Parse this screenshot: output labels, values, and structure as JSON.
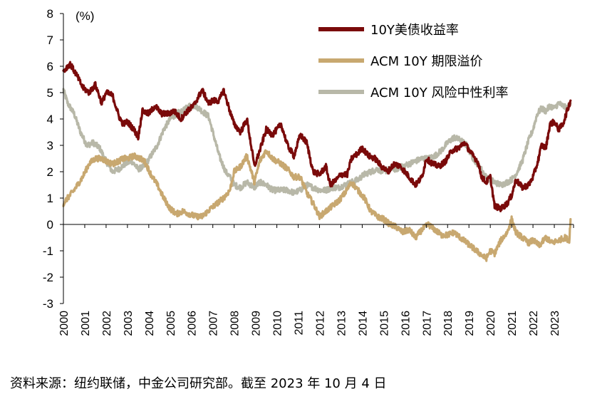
{
  "chart_data": {
    "type": "line",
    "unit": "(%)",
    "ylim": [
      -3,
      8
    ],
    "yticks": [
      -3,
      -2,
      -1,
      0,
      1,
      2,
      3,
      4,
      5,
      6,
      7,
      8
    ],
    "xlim": [
      2000,
      2023.9
    ],
    "xticks": [
      "2000",
      "2001",
      "2002",
      "2003",
      "2004",
      "2005",
      "2006",
      "2007",
      "2008",
      "2009",
      "2010",
      "2011",
      "2012",
      "2013",
      "2014",
      "2015",
      "2016",
      "2017",
      "2018",
      "2019",
      "2020",
      "2021",
      "2022",
      "2023"
    ],
    "grid": false,
    "legend_position": "top-right",
    "series": [
      {
        "name": "10Y美债收益率",
        "color": "#7a0a0a",
        "x": [
          2000.0,
          2000.3,
          2000.6,
          2000.9,
          2001.2,
          2001.5,
          2001.8,
          2002.0,
          2002.3,
          2002.6,
          2002.8,
          2003.0,
          2003.3,
          2003.5,
          2003.7,
          2004.0,
          2004.3,
          2004.6,
          2004.9,
          2005.2,
          2005.5,
          2005.8,
          2006.1,
          2006.5,
          2006.8,
          2007.0,
          2007.3,
          2007.5,
          2007.8,
          2008.0,
          2008.3,
          2008.6,
          2008.95,
          2009.2,
          2009.5,
          2009.8,
          2010.2,
          2010.5,
          2010.8,
          2011.1,
          2011.4,
          2011.7,
          2012.0,
          2012.3,
          2012.5,
          2012.8,
          2013.0,
          2013.3,
          2013.5,
          2013.8,
          2014.0,
          2014.3,
          2014.6,
          2014.9,
          2015.2,
          2015.5,
          2015.8,
          2016.1,
          2016.5,
          2016.8,
          2017.0,
          2017.3,
          2017.6,
          2017.9,
          2018.2,
          2018.5,
          2018.8,
          2019.1,
          2019.4,
          2019.6,
          2019.8,
          2020.0,
          2020.2,
          2020.5,
          2020.8,
          2021.0,
          2021.2,
          2021.5,
          2021.8,
          2022.0,
          2022.2,
          2022.4,
          2022.6,
          2022.8,
          2023.0,
          2023.2,
          2023.4,
          2023.6,
          2023.76
        ],
        "values": [
          5.8,
          6.1,
          5.7,
          5.2,
          5.0,
          5.3,
          4.6,
          5.0,
          4.9,
          4.1,
          3.8,
          3.9,
          3.6,
          3.3,
          4.3,
          4.2,
          4.5,
          4.2,
          4.2,
          4.3,
          4.0,
          4.3,
          4.5,
          5.1,
          4.6,
          4.7,
          4.7,
          5.1,
          4.3,
          3.8,
          3.5,
          4.0,
          2.2,
          2.8,
          3.6,
          3.4,
          3.8,
          3.0,
          2.6,
          3.4,
          3.1,
          2.0,
          1.9,
          2.2,
          1.5,
          1.7,
          1.9,
          1.9,
          2.5,
          2.7,
          2.9,
          2.6,
          2.5,
          2.2,
          2.0,
          2.3,
          2.2,
          1.9,
          1.5,
          1.8,
          2.5,
          2.3,
          2.2,
          2.4,
          2.8,
          2.9,
          3.1,
          2.7,
          2.4,
          1.8,
          1.6,
          1.8,
          0.7,
          0.6,
          0.8,
          1.1,
          1.7,
          1.4,
          1.5,
          1.8,
          2.3,
          3.0,
          2.9,
          3.8,
          3.9,
          3.6,
          3.8,
          4.3,
          4.7
        ]
      },
      {
        "name": "ACM 10Y 期限溢价",
        "color": "#c8a870",
        "x": [
          2000.0,
          2000.2,
          2000.5,
          2000.9,
          2001.2,
          2001.5,
          2001.8,
          2002.0,
          2002.3,
          2002.6,
          2002.8,
          2003.0,
          2003.3,
          2003.6,
          2003.8,
          2004.1,
          2004.4,
          2004.7,
          2005.0,
          2005.3,
          2005.6,
          2005.9,
          2006.2,
          2006.5,
          2006.9,
          2007.2,
          2007.5,
          2007.8,
          2008.0,
          2008.3,
          2008.6,
          2008.95,
          2009.2,
          2009.5,
          2009.8,
          2010.2,
          2010.5,
          2010.8,
          2011.1,
          2011.4,
          2011.7,
          2012.0,
          2012.3,
          2012.6,
          2012.9,
          2013.2,
          2013.5,
          2013.8,
          2014.1,
          2014.4,
          2014.7,
          2015.0,
          2015.3,
          2015.6,
          2015.9,
          2016.2,
          2016.5,
          2016.8,
          2017.1,
          2017.4,
          2017.7,
          2018.0,
          2018.3,
          2018.6,
          2018.9,
          2019.2,
          2019.5,
          2019.8,
          2020.0,
          2020.2,
          2020.5,
          2020.8,
          2021.0,
          2021.2,
          2021.5,
          2021.8,
          2022.0,
          2022.3,
          2022.6,
          2022.9,
          2023.2,
          2023.5,
          2023.7,
          2023.76
        ],
        "values": [
          0.8,
          1.0,
          1.3,
          1.8,
          2.3,
          2.5,
          2.5,
          2.4,
          2.3,
          2.4,
          2.5,
          2.5,
          2.6,
          2.5,
          2.4,
          1.9,
          1.5,
          1.0,
          0.6,
          0.4,
          0.5,
          0.4,
          0.3,
          0.3,
          0.6,
          0.8,
          1.0,
          1.3,
          2.0,
          2.2,
          2.6,
          1.6,
          2.4,
          2.8,
          2.5,
          2.3,
          2.1,
          1.8,
          1.8,
          1.2,
          0.8,
          0.3,
          0.5,
          0.7,
          0.9,
          1.2,
          1.6,
          1.3,
          1.0,
          0.5,
          0.3,
          0.2,
          0.0,
          -0.1,
          -0.3,
          -0.2,
          -0.5,
          -0.2,
          0.0,
          -0.2,
          -0.4,
          -0.4,
          -0.3,
          -0.5,
          -0.7,
          -0.9,
          -1.1,
          -1.3,
          -1.0,
          -1.1,
          -0.6,
          -0.3,
          0.2,
          -0.3,
          -0.5,
          -0.7,
          -0.6,
          -0.8,
          -0.5,
          -0.7,
          -0.6,
          -0.5,
          -0.6,
          0.2
        ]
      },
      {
        "name": "ACM 10Y 风险中性利率",
        "color": "#b8b8a8",
        "x": [
          2000.0,
          2000.2,
          2000.5,
          2000.8,
          2001.1,
          2001.4,
          2001.7,
          2002.0,
          2002.3,
          2002.6,
          2002.9,
          2003.2,
          2003.5,
          2003.8,
          2004.1,
          2004.4,
          2004.7,
          2005.0,
          2005.3,
          2005.6,
          2005.9,
          2006.2,
          2006.5,
          2006.8,
          2007.0,
          2007.3,
          2007.6,
          2007.8,
          2008.0,
          2008.3,
          2008.6,
          2008.95,
          2009.2,
          2009.5,
          2009.8,
          2010.2,
          2010.5,
          2010.8,
          2011.1,
          2011.4,
          2011.7,
          2012.0,
          2012.3,
          2012.6,
          2012.9,
          2013.2,
          2013.5,
          2013.8,
          2014.1,
          2014.4,
          2014.7,
          2015.0,
          2015.3,
          2015.6,
          2015.9,
          2016.2,
          2016.5,
          2016.8,
          2017.1,
          2017.4,
          2017.7,
          2018.0,
          2018.3,
          2018.6,
          2018.9,
          2019.2,
          2019.5,
          2019.8,
          2020.0,
          2020.2,
          2020.5,
          2020.8,
          2021.0,
          2021.2,
          2021.5,
          2021.8,
          2022.0,
          2022.2,
          2022.4,
          2022.6,
          2022.8,
          2023.0,
          2023.2,
          2023.4,
          2023.6,
          2023.76
        ],
        "values": [
          5.1,
          4.6,
          4.2,
          3.5,
          3.0,
          3.1,
          2.9,
          2.4,
          2.0,
          2.1,
          2.3,
          2.4,
          2.1,
          2.2,
          2.6,
          3.0,
          3.6,
          4.0,
          4.2,
          4.3,
          4.5,
          4.5,
          4.3,
          4.1,
          3.5,
          2.6,
          2.0,
          1.8,
          1.5,
          1.4,
          1.6,
          1.4,
          1.6,
          1.5,
          1.3,
          1.3,
          1.3,
          1.2,
          1.3,
          1.5,
          1.4,
          1.3,
          1.3,
          1.4,
          1.4,
          1.5,
          1.6,
          1.7,
          1.9,
          2.0,
          2.1,
          2.0,
          2.1,
          2.1,
          2.2,
          2.3,
          2.4,
          2.5,
          2.5,
          2.6,
          2.8,
          3.1,
          3.3,
          3.2,
          3.0,
          2.5,
          2.2,
          1.8,
          1.7,
          1.6,
          1.5,
          1.6,
          1.7,
          1.9,
          2.4,
          3.2,
          3.6,
          4.2,
          4.4,
          4.3,
          4.5,
          4.4,
          4.6,
          4.5,
          4.4,
          4.6
        ]
      }
    ]
  },
  "footer": {
    "source": "资料来源：纽约联储，中金公司研究部。截至 2023 年 10 月 4 日"
  }
}
